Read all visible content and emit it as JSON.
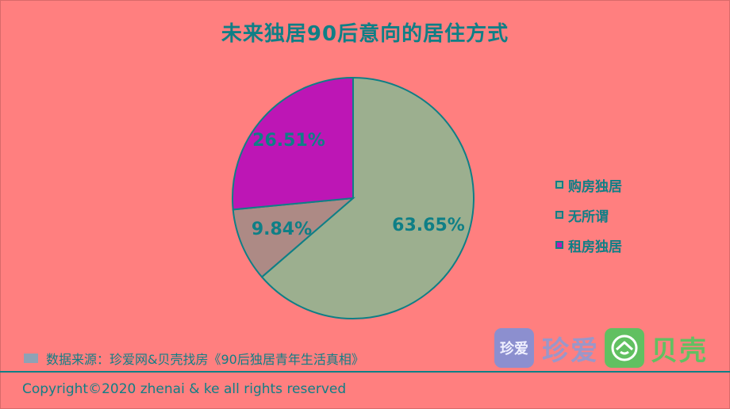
{
  "title": "未来独居90后意向的居住方式",
  "chart_data": {
    "type": "pie",
    "title": "未来独居90后意向的居住方式",
    "slices": [
      {
        "label": "购房独居",
        "value": 63.65,
        "display": "63.65%",
        "color": "#9caf8f"
      },
      {
        "label": "无所谓",
        "value": 9.84,
        "display": "9.84%",
        "color": "#ad8a85"
      },
      {
        "label": "租房独居",
        "value": 26.51,
        "display": "26.51%",
        "color": "#bd16b5"
      }
    ],
    "start_angle_deg": 0,
    "direction": "clockwise",
    "legend_position": "right"
  },
  "legend": {
    "items": [
      "购房独居",
      "无所谓",
      "租房独居"
    ]
  },
  "source": "数据来源：珍爱网&贝壳找房《90后独居青年生活真相》",
  "copyright": "Copyright©2020 zhenai & ke all rights reserved",
  "logos": {
    "zhenai_icon_text": "珍爱",
    "zhenai_text": "珍爱",
    "ke_text": "贝壳"
  },
  "colors": {
    "background": "#ff7f7f",
    "text": "#0f7f86",
    "stroke": "#0f7f86"
  }
}
